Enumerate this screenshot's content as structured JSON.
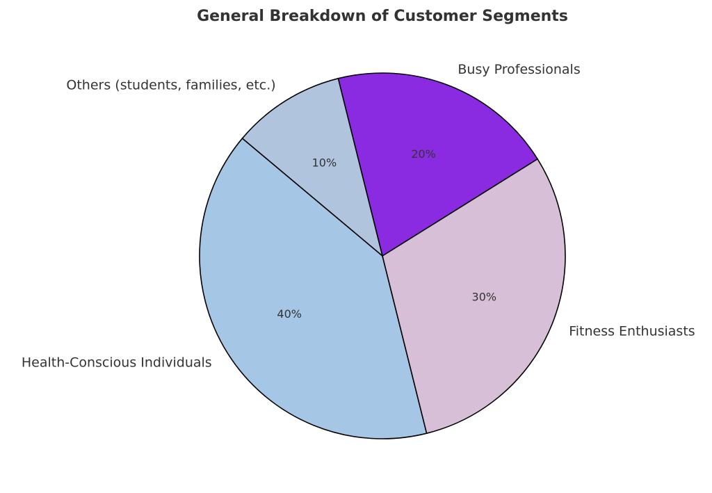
{
  "chart_data": {
    "type": "pie",
    "title": "General Breakdown of Customer Segments",
    "categories": [
      "Health-Conscious Individuals",
      "Fitness Enthusiasts",
      "Busy Professionals",
      "Others (students, families, etc.)"
    ],
    "values": [
      40,
      30,
      20,
      10
    ],
    "value_labels": [
      "40%",
      "30%",
      "20%",
      "10%"
    ],
    "colors": [
      "#a6c6e6",
      "#d8bfd8",
      "#8a2be2",
      "#b0c4de"
    ],
    "start_angle_deg": 140,
    "direction": "counterclockwise",
    "legend": "none"
  }
}
